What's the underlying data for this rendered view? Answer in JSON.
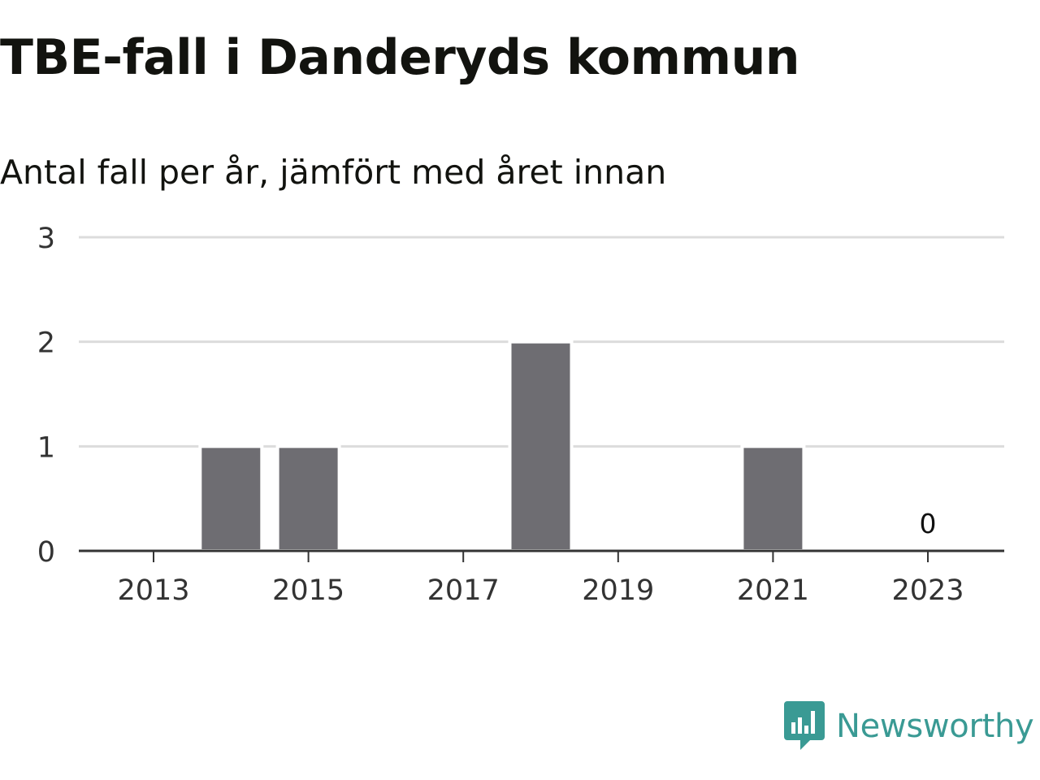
{
  "header": {
    "title": "TBE-fall i Danderyds kommun",
    "subtitle": "Antal fall per år, jämfört med året innan"
  },
  "brand": {
    "name": "Newsworthy",
    "icon": "newsworthy-logo-icon",
    "color": "#3a9a94"
  },
  "colors": {
    "bar": "#6e6d72",
    "grid": "#dcdcdc",
    "axis": "#333333",
    "text": "#333333"
  },
  "chart_data": {
    "type": "bar",
    "categories": [
      "2013",
      "2014",
      "2015",
      "2016",
      "2017",
      "2018",
      "2019",
      "2020",
      "2021",
      "2022",
      "2023"
    ],
    "values": [
      0,
      1,
      1,
      0,
      0,
      2,
      0,
      0,
      1,
      0,
      0
    ],
    "x_tick_labels": [
      "2013",
      "2015",
      "2017",
      "2019",
      "2021",
      "2023"
    ],
    "y_ticks": [
      0,
      1,
      2,
      3
    ],
    "ylim": [
      0,
      3
    ],
    "grid": true,
    "data_labels": [
      {
        "category": "2023",
        "text": "0"
      }
    ],
    "title": "TBE-fall i Danderyds kommun",
    "subtitle": "Antal fall per år, jämfört med året innan",
    "xlabel": "",
    "ylabel": ""
  }
}
